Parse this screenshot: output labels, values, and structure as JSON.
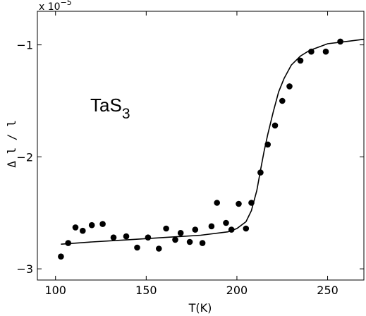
{
  "chart_data": {
    "type": "scatter",
    "title": "",
    "xlabel": "T(K)",
    "ylabel": "Δ l / l",
    "xlim": [
      90,
      270
    ],
    "ylim": [
      -3.1,
      -0.7
    ],
    "xticks": [
      100,
      150,
      200,
      250
    ],
    "yticks": [
      -3,
      -2,
      -1
    ],
    "y_multiplier": {
      "base": "x 10",
      "exponent": "−5"
    },
    "annotation": {
      "text": "TaS",
      "subscript": "3"
    },
    "grid": false,
    "series": [
      {
        "kind": "points",
        "x": [
          103,
          107,
          111,
          115,
          120,
          126,
          132,
          139,
          145,
          151,
          157,
          161,
          166,
          169,
          174,
          177,
          181,
          186,
          189,
          194,
          197,
          201,
          205,
          208,
          213,
          217,
          221,
          225,
          229,
          235,
          241,
          249,
          257
        ],
        "y": [
          -2.89,
          -2.77,
          -2.63,
          -2.66,
          -2.61,
          -2.6,
          -2.72,
          -2.71,
          -2.81,
          -2.72,
          -2.82,
          -2.64,
          -2.74,
          -2.68,
          -2.76,
          -2.65,
          -2.77,
          -2.62,
          -2.41,
          -2.59,
          -2.65,
          -2.42,
          -2.64,
          -2.41,
          -2.14,
          -1.89,
          -1.72,
          -1.5,
          -1.37,
          -1.14,
          -1.06,
          -1.06,
          -0.97
        ]
      },
      {
        "kind": "fit-line",
        "x": [
          103,
          120,
          140,
          160,
          180,
          195,
          200,
          205,
          208,
          211,
          213,
          215,
          217,
          220,
          223,
          226,
          230,
          235,
          240,
          250,
          260,
          270
        ],
        "y": [
          -2.78,
          -2.76,
          -2.74,
          -2.72,
          -2.7,
          -2.67,
          -2.64,
          -2.58,
          -2.48,
          -2.3,
          -2.12,
          -1.95,
          -1.8,
          -1.6,
          -1.42,
          -1.3,
          -1.18,
          -1.1,
          -1.05,
          -0.99,
          -0.97,
          -0.95
        ]
      }
    ]
  }
}
